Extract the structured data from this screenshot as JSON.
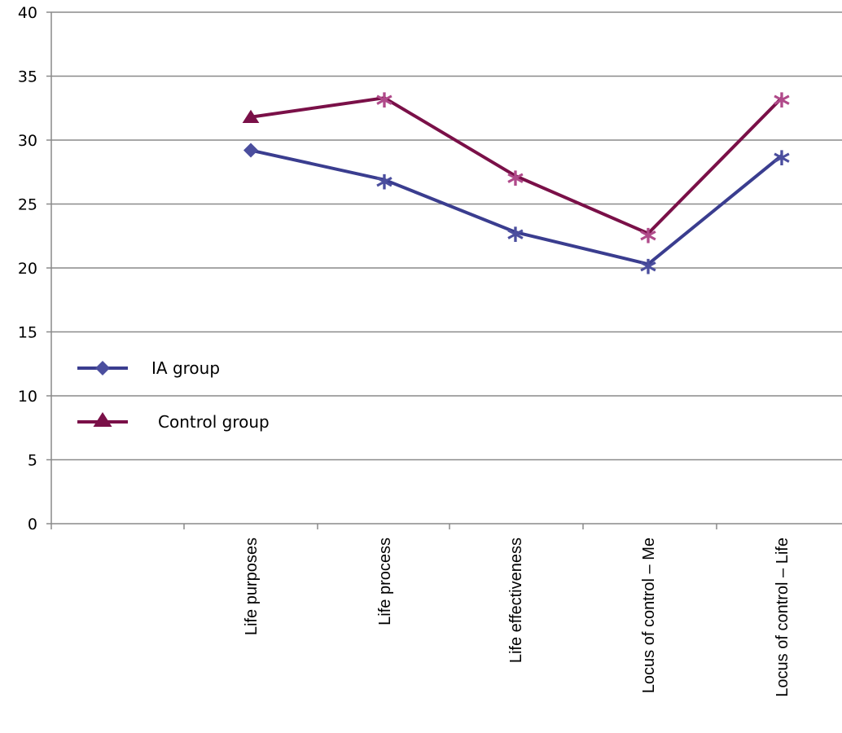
{
  "chart_data": {
    "type": "line",
    "title": "",
    "xlabel": "",
    "ylabel": "",
    "ylim": [
      0,
      40
    ],
    "yticks": [
      "0",
      "5",
      "10",
      "15",
      "20",
      "25",
      "30",
      "35",
      "40"
    ],
    "grid": "horizontal",
    "legend_position": "left-middle",
    "categories": [
      "Life purposes",
      "Life process",
      "Life effectiveness",
      "Locus of control – Me",
      "Locus of control – Life"
    ],
    "series": [
      {
        "name": "IA group",
        "color": "#3A3D8F",
        "marker_color": "#4B4E9E",
        "legend_marker": "diamond",
        "values": [
          29.2,
          26.9,
          22.8,
          20.3,
          28.8
        ],
        "point_markers": [
          "diamond",
          "asterisk",
          "asterisk",
          "asterisk",
          "asterisk"
        ]
      },
      {
        "name": "Control group",
        "color": "#7A1048",
        "marker_color": "#B04A8A",
        "legend_marker": "triangle",
        "values": [
          31.8,
          33.3,
          27.2,
          22.7,
          33.3
        ],
        "point_markers": [
          "triangle",
          "asterisk",
          "asterisk",
          "asterisk",
          "asterisk"
        ]
      }
    ]
  }
}
